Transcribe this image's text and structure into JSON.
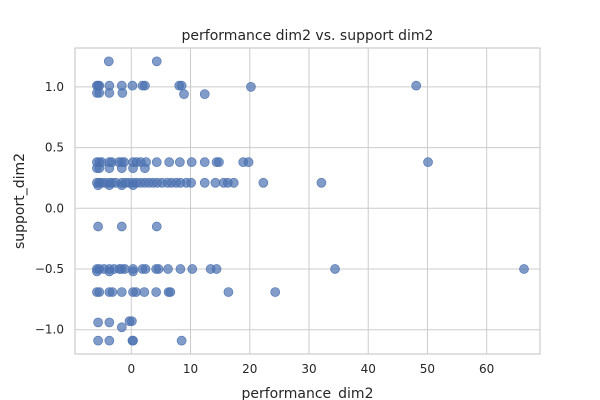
{
  "chart_data": {
    "type": "scatter",
    "title": "performance dim2 vs. support dim2",
    "xlabel": "performance_dim2",
    "ylabel": "support_dim2",
    "xlim": [
      -9.5,
      69
    ],
    "ylim": [
      -1.2,
      1.32
    ],
    "x_ticks": [
      0,
      10,
      20,
      30,
      40,
      50,
      60
    ],
    "y_ticks": [
      -1.0,
      -0.5,
      0.0,
      0.5,
      1.0
    ],
    "x_tick_labels": [
      "0",
      "10",
      "20",
      "30",
      "40",
      "50",
      "60"
    ],
    "y_tick_labels": [
      "−1.0",
      "−0.5",
      "0.0",
      "0.5",
      "1.0"
    ],
    "grid": true,
    "color": "#4c72b0",
    "alpha": 0.7,
    "points": [
      {
        "x": -3.8,
        "y": 1.21
      },
      {
        "x": 4.3,
        "y": 1.21
      },
      {
        "x": -5.8,
        "y": 1.01
      },
      {
        "x": -5.6,
        "y": 1.01
      },
      {
        "x": -5.4,
        "y": 1.01
      },
      {
        "x": -3.7,
        "y": 1.01
      },
      {
        "x": -1.6,
        "y": 1.01
      },
      {
        "x": 0.2,
        "y": 1.01
      },
      {
        "x": 1.9,
        "y": 1.01
      },
      {
        "x": 2.3,
        "y": 1.01
      },
      {
        "x": 8.1,
        "y": 1.01
      },
      {
        "x": 8.5,
        "y": 1.01
      },
      {
        "x": 20.2,
        "y": 1.0
      },
      {
        "x": 48.1,
        "y": 1.01
      },
      {
        "x": -5.8,
        "y": 0.95
      },
      {
        "x": -5.4,
        "y": 0.95
      },
      {
        "x": -3.7,
        "y": 0.95
      },
      {
        "x": -1.5,
        "y": 0.95
      },
      {
        "x": 8.9,
        "y": 0.94
      },
      {
        "x": 12.4,
        "y": 0.94
      },
      {
        "x": -5.8,
        "y": 0.38
      },
      {
        "x": -5.4,
        "y": 0.38
      },
      {
        "x": -5.0,
        "y": 0.38
      },
      {
        "x": -3.7,
        "y": 0.38
      },
      {
        "x": -3.3,
        "y": 0.38
      },
      {
        "x": -2.1,
        "y": 0.38
      },
      {
        "x": -1.6,
        "y": 0.38
      },
      {
        "x": -1.2,
        "y": 0.38
      },
      {
        "x": 0.3,
        "y": 0.38
      },
      {
        "x": 0.9,
        "y": 0.38
      },
      {
        "x": 1.6,
        "y": 0.38
      },
      {
        "x": 2.5,
        "y": 0.38
      },
      {
        "x": 4.3,
        "y": 0.38
      },
      {
        "x": 6.4,
        "y": 0.38
      },
      {
        "x": 8.2,
        "y": 0.38
      },
      {
        "x": 10.2,
        "y": 0.38
      },
      {
        "x": 12.4,
        "y": 0.38
      },
      {
        "x": 14.4,
        "y": 0.38
      },
      {
        "x": 14.8,
        "y": 0.38
      },
      {
        "x": 18.9,
        "y": 0.38
      },
      {
        "x": 19.8,
        "y": 0.38
      },
      {
        "x": 50.1,
        "y": 0.38
      },
      {
        "x": -5.8,
        "y": 0.33
      },
      {
        "x": -5.4,
        "y": 0.33
      },
      {
        "x": -3.7,
        "y": 0.33
      },
      {
        "x": -1.6,
        "y": 0.33
      },
      {
        "x": 0.3,
        "y": 0.33
      },
      {
        "x": 2.3,
        "y": 0.33
      },
      {
        "x": -5.8,
        "y": 0.21
      },
      {
        "x": -5.4,
        "y": 0.21
      },
      {
        "x": -5.0,
        "y": 0.21
      },
      {
        "x": -4.4,
        "y": 0.21
      },
      {
        "x": -3.7,
        "y": 0.21
      },
      {
        "x": -3.2,
        "y": 0.21
      },
      {
        "x": -2.6,
        "y": 0.21
      },
      {
        "x": -1.6,
        "y": 0.21
      },
      {
        "x": -1.0,
        "y": 0.21
      },
      {
        "x": -0.4,
        "y": 0.21
      },
      {
        "x": 0.3,
        "y": 0.21
      },
      {
        "x": 0.9,
        "y": 0.21
      },
      {
        "x": 1.6,
        "y": 0.21
      },
      {
        "x": 2.3,
        "y": 0.21
      },
      {
        "x": 3.0,
        "y": 0.21
      },
      {
        "x": 3.7,
        "y": 0.21
      },
      {
        "x": 4.4,
        "y": 0.21
      },
      {
        "x": 5.2,
        "y": 0.21
      },
      {
        "x": 6.1,
        "y": 0.21
      },
      {
        "x": 6.8,
        "y": 0.21
      },
      {
        "x": 7.6,
        "y": 0.21
      },
      {
        "x": 8.3,
        "y": 0.21
      },
      {
        "x": 9.3,
        "y": 0.21
      },
      {
        "x": 10.1,
        "y": 0.21
      },
      {
        "x": 12.4,
        "y": 0.21
      },
      {
        "x": 14.2,
        "y": 0.21
      },
      {
        "x": 15.6,
        "y": 0.21
      },
      {
        "x": 16.3,
        "y": 0.21
      },
      {
        "x": 17.3,
        "y": 0.21
      },
      {
        "x": 22.3,
        "y": 0.21
      },
      {
        "x": 32.1,
        "y": 0.21
      },
      {
        "x": -5.6,
        "y": 0.19
      },
      {
        "x": -3.7,
        "y": 0.19
      },
      {
        "x": -1.6,
        "y": 0.19
      },
      {
        "x": 0.3,
        "y": 0.19
      },
      {
        "x": -5.6,
        "y": -0.15
      },
      {
        "x": -1.6,
        "y": -0.15
      },
      {
        "x": 4.3,
        "y": -0.15
      },
      {
        "x": -5.8,
        "y": -0.5
      },
      {
        "x": -5.4,
        "y": -0.5
      },
      {
        "x": -4.6,
        "y": -0.5
      },
      {
        "x": -3.7,
        "y": -0.5
      },
      {
        "x": -2.9,
        "y": -0.5
      },
      {
        "x": -2.0,
        "y": -0.5
      },
      {
        "x": -1.6,
        "y": -0.5
      },
      {
        "x": -1.1,
        "y": -0.5
      },
      {
        "x": 0.3,
        "y": -0.5
      },
      {
        "x": 1.9,
        "y": -0.5
      },
      {
        "x": 2.4,
        "y": -0.5
      },
      {
        "x": 4.2,
        "y": -0.5
      },
      {
        "x": 4.6,
        "y": -0.5
      },
      {
        "x": 6.2,
        "y": -0.5
      },
      {
        "x": 8.3,
        "y": -0.5
      },
      {
        "x": 10.3,
        "y": -0.5
      },
      {
        "x": 13.4,
        "y": -0.5
      },
      {
        "x": 14.4,
        "y": -0.5
      },
      {
        "x": 34.4,
        "y": -0.5
      },
      {
        "x": 66.3,
        "y": -0.5
      },
      {
        "x": -5.8,
        "y": -0.52
      },
      {
        "x": -3.7,
        "y": -0.52
      },
      {
        "x": 0.3,
        "y": -0.52
      },
      {
        "x": -5.8,
        "y": -0.69
      },
      {
        "x": -5.4,
        "y": -0.69
      },
      {
        "x": -3.7,
        "y": -0.69
      },
      {
        "x": -3.2,
        "y": -0.69
      },
      {
        "x": -1.6,
        "y": -0.69
      },
      {
        "x": 0.3,
        "y": -0.69
      },
      {
        "x": 0.8,
        "y": -0.69
      },
      {
        "x": 2.2,
        "y": -0.69
      },
      {
        "x": 4.2,
        "y": -0.69
      },
      {
        "x": 6.3,
        "y": -0.69
      },
      {
        "x": 6.6,
        "y": -0.69
      },
      {
        "x": 16.4,
        "y": -0.69
      },
      {
        "x": 24.3,
        "y": -0.69
      },
      {
        "x": -5.6,
        "y": -0.94
      },
      {
        "x": -3.7,
        "y": -0.94
      },
      {
        "x": -0.3,
        "y": -0.93
      },
      {
        "x": 0.1,
        "y": -0.93
      },
      {
        "x": -1.6,
        "y": -0.98
      },
      {
        "x": -5.6,
        "y": -1.09
      },
      {
        "x": -3.7,
        "y": -1.09
      },
      {
        "x": 0.2,
        "y": -1.09
      },
      {
        "x": 0.3,
        "y": -1.09
      },
      {
        "x": 8.5,
        "y": -1.09
      }
    ]
  }
}
